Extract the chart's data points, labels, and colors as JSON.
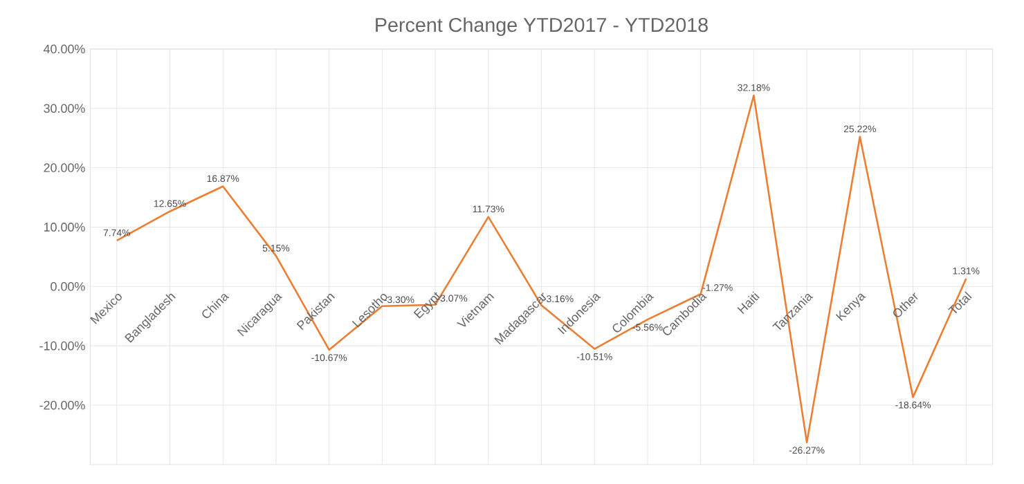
{
  "chart_data": {
    "type": "line",
    "title": "Percent Change YTD2017 - YTD2018",
    "categories": [
      "Mexico",
      "Bangladesh",
      "China",
      "Nicaragua",
      "Pakistan",
      "Lesotho",
      "Egypt",
      "Vietnam",
      "Madagascar",
      "Indonesia",
      "Colombia",
      "Cambodia",
      "Haiti",
      "Tanzania",
      "Kenya",
      "Other",
      "Total"
    ],
    "values": [
      7.74,
      12.65,
      16.87,
      5.15,
      -10.67,
      -3.3,
      -3.07,
      11.73,
      -3.16,
      -10.51,
      -5.56,
      -1.27,
      32.18,
      -26.27,
      25.22,
      -18.64,
      1.31
    ],
    "value_labels": [
      "7.74%",
      "12.65%",
      "16.87%",
      "5.15%",
      "-10.67%",
      "-3.30%",
      "-3.07%",
      "11.73%",
      "-3.16%",
      "-10.51%",
      "-5.56%",
      "-1.27%",
      "32.18%",
      "-26.27%",
      "25.22%",
      "-18.64%",
      "1.31%"
    ],
    "color": "#ed7d31",
    "ylim": [
      -30,
      40
    ],
    "yticks": [
      {
        "value": -20,
        "label": "-20.00%"
      },
      {
        "value": -10,
        "label": "-10.00%"
      },
      {
        "value": 0,
        "label": "0.00%"
      },
      {
        "value": 10,
        "label": "10.00%"
      },
      {
        "value": 20,
        "label": "20.00%"
      },
      {
        "value": 30,
        "label": "30.00%"
      },
      {
        "value": 40,
        "label": "40.00%"
      }
    ],
    "grid": true,
    "marker": "none",
    "line_style": "solid"
  }
}
